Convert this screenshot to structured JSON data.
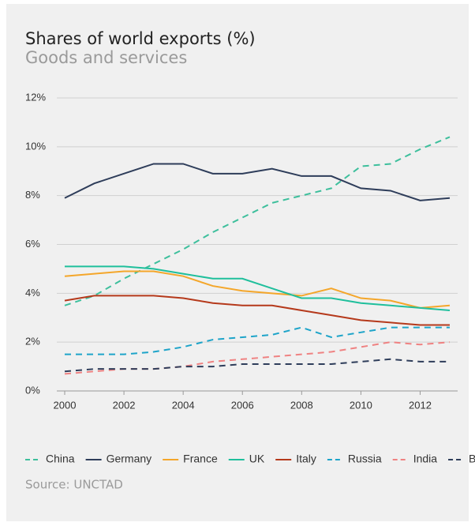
{
  "chart_data": {
    "type": "line",
    "title": "Shares of world exports (%)",
    "subtitle": "Goods and services",
    "source": "Source: UNCTAD",
    "x": [
      2000,
      2001,
      2002,
      2003,
      2004,
      2005,
      2006,
      2007,
      2008,
      2009,
      2010,
      2011,
      2012,
      2013
    ],
    "xlim": [
      2000,
      2013
    ],
    "xticks": [
      2000,
      2002,
      2004,
      2006,
      2008,
      2010,
      2012
    ],
    "ylim": [
      0,
      12
    ],
    "yticks": [
      {
        "value": 0,
        "label": "0%"
      },
      {
        "value": 2,
        "label": "2%"
      },
      {
        "value": 4,
        "label": "4%"
      },
      {
        "value": 6,
        "label": "6%"
      },
      {
        "value": 8,
        "label": "8%"
      },
      {
        "value": 10,
        "label": "10%"
      },
      {
        "value": 12,
        "label": "12%"
      }
    ],
    "grid": true,
    "legend": "bottom",
    "series": [
      {
        "name": "China",
        "color": "#3dbf9c",
        "dashed": true,
        "values": [
          3.5,
          3.9,
          4.6,
          5.2,
          5.8,
          6.5,
          7.1,
          7.7,
          8.0,
          8.3,
          9.2,
          9.3,
          9.9,
          10.4
        ]
      },
      {
        "name": "Germany",
        "color": "#2e3d5a",
        "dashed": false,
        "values": [
          7.9,
          8.5,
          8.9,
          9.3,
          9.3,
          8.9,
          8.9,
          9.1,
          8.8,
          8.8,
          8.3,
          8.2,
          7.8,
          7.9
        ]
      },
      {
        "name": "France",
        "color": "#f4a62a",
        "dashed": false,
        "values": [
          4.7,
          4.8,
          4.9,
          4.9,
          4.7,
          4.3,
          4.1,
          4.0,
          3.9,
          4.2,
          3.8,
          3.7,
          3.4,
          3.5
        ]
      },
      {
        "name": "UK",
        "color": "#1fbf9c",
        "dashed": false,
        "values": [
          5.1,
          5.1,
          5.1,
          5.0,
          4.8,
          4.6,
          4.6,
          4.2,
          3.8,
          3.8,
          3.6,
          3.5,
          3.4,
          3.3
        ]
      },
      {
        "name": "Italy",
        "color": "#b5391b",
        "dashed": false,
        "values": [
          3.7,
          3.9,
          3.9,
          3.9,
          3.8,
          3.6,
          3.5,
          3.5,
          3.3,
          3.1,
          2.9,
          2.8,
          2.7,
          2.7
        ]
      },
      {
        "name": "Russia",
        "color": "#1ea4c9",
        "dashed": true,
        "values": [
          1.5,
          1.5,
          1.5,
          1.6,
          1.8,
          2.1,
          2.2,
          2.3,
          2.6,
          2.2,
          2.4,
          2.6,
          2.6,
          2.6
        ]
      },
      {
        "name": "India",
        "color": "#ef8282",
        "dashed": true,
        "values": [
          0.7,
          0.8,
          0.9,
          0.9,
          1.0,
          1.2,
          1.3,
          1.4,
          1.5,
          1.6,
          1.8,
          2.0,
          1.9,
          2.0
        ]
      },
      {
        "name": "Brazil",
        "color": "#2e3d5a",
        "dashed": true,
        "values": [
          0.8,
          0.9,
          0.9,
          0.9,
          1.0,
          1.0,
          1.1,
          1.1,
          1.1,
          1.1,
          1.2,
          1.3,
          1.2,
          1.2
        ]
      }
    ]
  }
}
